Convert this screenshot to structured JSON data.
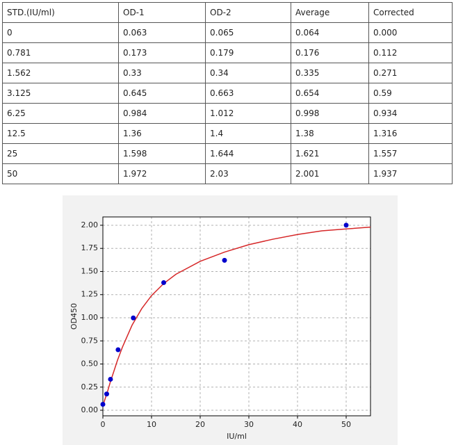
{
  "table": {
    "header": [
      "STD.(IU/ml)",
      "OD-1",
      "OD-2",
      "Average",
      "Corrected"
    ],
    "rows": [
      [
        "0",
        "0.063",
        "0.065",
        "0.064",
        "0.000"
      ],
      [
        "0.781",
        "0.173",
        "0.179",
        "0.176",
        "0.112"
      ],
      [
        "1.562",
        "0.33",
        "0.34",
        "0.335",
        "0.271"
      ],
      [
        "3.125",
        "0.645",
        "0.663",
        "0.654",
        "0.59"
      ],
      [
        "6.25",
        "0.984",
        "1.012",
        "0.998",
        "0.934"
      ],
      [
        "12.5",
        "1.36",
        "1.4",
        "1.38",
        "1.316"
      ],
      [
        "25",
        "1.598",
        "1.644",
        "1.621",
        "1.557"
      ],
      [
        "50",
        "1.972",
        "2.03",
        "2.001",
        "1.937"
      ]
    ]
  },
  "chart_data": {
    "type": "scatter",
    "xlabel": "IU/ml",
    "ylabel": "OD450",
    "x": [
      0,
      0.781,
      1.562,
      3.125,
      6.25,
      12.5,
      25,
      50
    ],
    "values": [
      0.064,
      0.176,
      0.335,
      0.654,
      0.998,
      1.38,
      1.621,
      2.001
    ],
    "color": "#0000cc",
    "fit": {
      "color": "#d62728",
      "x": [
        0,
        0.5,
        1,
        1.5,
        2,
        3,
        4,
        5,
        6,
        8,
        10,
        12.5,
        15,
        20,
        25,
        30,
        35,
        40,
        45,
        50,
        55
      ],
      "values": [
        0.05,
        0.13,
        0.21,
        0.3,
        0.38,
        0.54,
        0.68,
        0.8,
        0.92,
        1.1,
        1.24,
        1.37,
        1.47,
        1.61,
        1.71,
        1.79,
        1.85,
        1.9,
        1.94,
        1.96,
        1.98
      ]
    },
    "xlim": [
      0,
      55
    ],
    "ylim": [
      -0.06,
      2.09
    ],
    "xticks": [
      0,
      10,
      20,
      30,
      40,
      50
    ],
    "yticks": [
      {
        "value": 0,
        "label": "0.00"
      },
      {
        "value": 0.25,
        "label": "0.25"
      },
      {
        "value": 0.5,
        "label": "0.50"
      },
      {
        "value": 0.75,
        "label": "0.75"
      },
      {
        "value": 1,
        "label": "1.00"
      },
      {
        "value": 1.25,
        "label": "1.25"
      },
      {
        "value": 1.5,
        "label": "1.50"
      },
      {
        "value": 1.75,
        "label": "1.75"
      },
      {
        "value": 2,
        "label": "2.00"
      }
    ],
    "grid": true
  }
}
